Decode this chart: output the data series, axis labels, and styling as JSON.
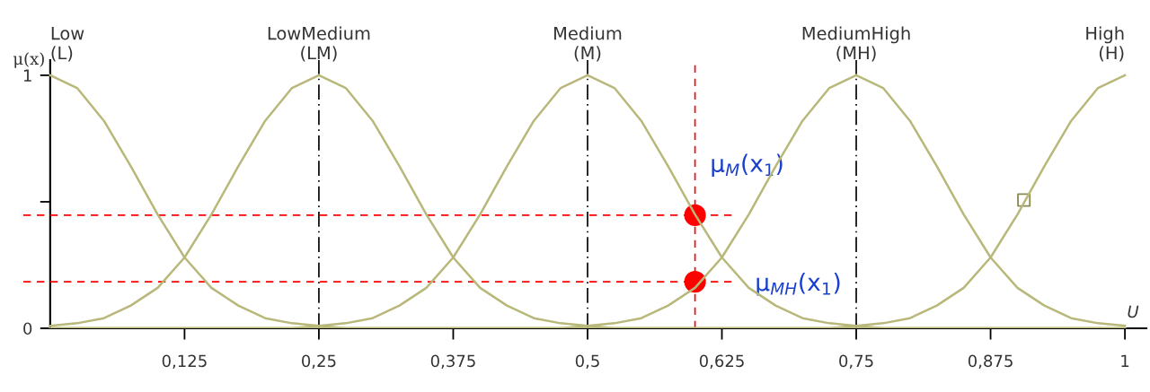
{
  "chart_data": {
    "type": "line",
    "ylabel": "μ(x)",
    "xlabel": "U",
    "x": [
      0,
      0.025,
      0.05,
      0.075,
      0.1,
      0.125,
      0.15,
      0.175,
      0.2,
      0.225,
      0.25,
      0.275,
      0.3,
      0.325,
      0.35,
      0.375,
      0.4,
      0.425,
      0.45,
      0.475,
      0.5,
      0.525,
      0.55,
      0.575,
      0.6,
      0.625,
      0.65,
      0.675,
      0.7,
      0.725,
      0.75,
      0.775,
      0.8,
      0.825,
      0.85,
      0.875,
      0.9,
      0.925,
      0.95,
      0.975,
      1
    ],
    "series": [
      {
        "name": "Low\n(L)",
        "color": "#b8b87a",
        "values": [
          1,
          0.95,
          0.82,
          0.64,
          0.45,
          0.28,
          0.16,
          0.09,
          0.04,
          0.02,
          0.01,
          0,
          0,
          0,
          0,
          0,
          0,
          0,
          0,
          0,
          0,
          0,
          0,
          0,
          0,
          0,
          0,
          0,
          0,
          0,
          0,
          0,
          0,
          0,
          0,
          0,
          0,
          0,
          0,
          0,
          0
        ]
      },
      {
        "name": "LowMedium\n(LM)",
        "color": "#b8b87a",
        "values": [
          0.01,
          0.02,
          0.04,
          0.09,
          0.16,
          0.28,
          0.45,
          0.64,
          0.82,
          0.95,
          1,
          0.95,
          0.82,
          0.64,
          0.45,
          0.28,
          0.16,
          0.09,
          0.04,
          0.02,
          0.01,
          0,
          0,
          0,
          0,
          0,
          0,
          0,
          0,
          0,
          0,
          0,
          0,
          0,
          0,
          0,
          0,
          0,
          0,
          0,
          0
        ]
      },
      {
        "name": "Medium\n(M)",
        "color": "#b8b87a",
        "values": [
          0,
          0,
          0,
          0,
          0,
          0,
          0,
          0,
          0,
          0,
          0.01,
          0.02,
          0.04,
          0.09,
          0.16,
          0.28,
          0.45,
          0.64,
          0.82,
          0.95,
          1,
          0.95,
          0.82,
          0.64,
          0.45,
          0.28,
          0.16,
          0.09,
          0.04,
          0.02,
          0.01,
          0,
          0,
          0,
          0,
          0,
          0,
          0,
          0,
          0,
          0
        ]
      },
      {
        "name": "MediumHigh\n(MH)",
        "color": "#b8b87a",
        "values": [
          0,
          0,
          0,
          0,
          0,
          0,
          0,
          0,
          0,
          0,
          0,
          0,
          0,
          0,
          0,
          0,
          0,
          0,
          0,
          0,
          0.01,
          0.02,
          0.04,
          0.09,
          0.16,
          0.28,
          0.45,
          0.64,
          0.82,
          0.95,
          1,
          0.95,
          0.82,
          0.64,
          0.45,
          0.28,
          0.16,
          0.09,
          0.04,
          0.02,
          0.01
        ]
      },
      {
        "name": "High\n(H)",
        "color": "#b8b87a",
        "values": [
          0,
          0,
          0,
          0,
          0,
          0,
          0,
          0,
          0,
          0,
          0,
          0,
          0,
          0,
          0,
          0,
          0,
          0,
          0,
          0,
          0,
          0,
          0,
          0,
          0,
          0,
          0,
          0,
          0,
          0,
          0.01,
          0.02,
          0.04,
          0.09,
          0.16,
          0.28,
          0.45,
          0.64,
          0.82,
          0.95,
          1
        ]
      },
      {
        "type": "line",
        "line_style": "dashed",
        "color": "#ff0000",
        "x": [
          -0.025,
          0.635
        ],
        "values": [
          0.447,
          0.447
        ]
      },
      {
        "type": "line",
        "line_style": "dashed",
        "color": "#ff0000",
        "x": [
          -0.025,
          0.635
        ],
        "values": [
          0.184,
          0.184
        ]
      },
      {
        "type": "scatter",
        "marker": "circle",
        "color": "#ff0000",
        "x": [
          0.6,
          0.6
        ],
        "values": [
          0.447,
          0.184
        ]
      },
      {
        "type": "scatter",
        "marker": "square",
        "color": "#8a8a50",
        "x": [
          0.906
        ],
        "values": [
          0.507
        ]
      }
    ],
    "ref_lines": [
      {
        "axis": "x",
        "value": 0.25,
        "color": "#000000",
        "line_style": "dashdot"
      },
      {
        "axis": "x",
        "value": 0.5,
        "color": "#000000",
        "line_style": "dashdot"
      },
      {
        "axis": "x",
        "value": 0.75,
        "color": "#000000",
        "line_style": "dashdot"
      },
      {
        "axis": "x",
        "value": 0.6,
        "color": "#ff0000",
        "line_style": "dashed"
      }
    ],
    "annotations": [
      {
        "text": "μ$_{M}$(x$_{1}$)",
        "x": 0.6,
        "y": 0.447
      },
      {
        "text": "μ$_{MH}$(x$_{1}$)",
        "x": 0.6,
        "y": 0.184
      }
    ],
    "xlim": [
      -0.03,
      1.02
    ],
    "ylim": [
      0,
      1.06
    ],
    "xticks": [
      {
        "value": 0.125,
        "label": "0,125"
      },
      {
        "value": 0.25,
        "label": "0,25"
      },
      {
        "value": 0.375,
        "label": "0,375"
      },
      {
        "value": 0.5,
        "label": "0,5"
      },
      {
        "value": 0.625,
        "label": "0,625"
      },
      {
        "value": 0.75,
        "label": "0,75"
      },
      {
        "value": 0.875,
        "label": "0,875"
      },
      1
    ],
    "yticks": [
      0,
      {
        "value": 0.5,
        "label": null
      },
      1
    ],
    "grid": false,
    "legend": false,
    "line_style": "solid",
    "marker": "none"
  }
}
